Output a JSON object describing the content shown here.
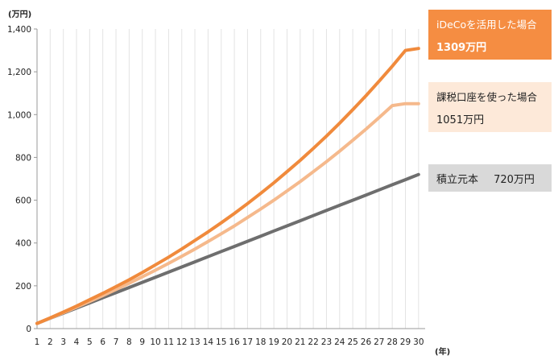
{
  "chart_data": {
    "type": "line",
    "y_unit_label": "(万円)",
    "x_unit_label": "(年)",
    "x": [
      1,
      2,
      3,
      4,
      5,
      6,
      7,
      8,
      9,
      10,
      11,
      12,
      13,
      14,
      15,
      16,
      17,
      18,
      19,
      20,
      21,
      22,
      23,
      24,
      25,
      26,
      27,
      28,
      29,
      30
    ],
    "ylim": [
      0,
      1400
    ],
    "yticks": [
      0,
      200,
      400,
      600,
      800,
      1000,
      1200,
      1400
    ],
    "ytick_labels": [
      "0",
      "200",
      "400",
      "600",
      "800",
      "1,000",
      "1,200",
      "1,400"
    ],
    "grid": "vertical",
    "series": [
      {
        "name": "iDeCoを活用した場合",
        "color": "#f08a3c",
        "values": [
          24,
          50,
          77,
          105,
          135,
          165,
          196,
          228,
          262,
          298,
          334,
          372,
          412,
          452,
          494,
          538,
          584,
          632,
          681,
          733,
          786,
          842,
          900,
          960,
          1023,
          1088,
          1156,
          1226,
          1300,
          1309
        ]
      },
      {
        "name": "課税口座を使った場合",
        "color": "#f5b98c",
        "values": [
          24,
          49,
          74,
          100,
          127,
          154,
          183,
          212,
          242,
          273,
          305,
          338,
          372,
          407,
          443,
          480,
          519,
          559,
          600,
          643,
          687,
          733,
          780,
          829,
          880,
          932,
          986,
          1042,
          1051,
          1051
        ]
      },
      {
        "name": "積立元本",
        "color": "#6e6e6e",
        "values": [
          24,
          48,
          72,
          96,
          120,
          144,
          168,
          192,
          216,
          240,
          264,
          288,
          312,
          336,
          360,
          384,
          408,
          432,
          456,
          480,
          504,
          528,
          552,
          576,
          600,
          624,
          648,
          672,
          696,
          720
        ]
      }
    ]
  },
  "legend": [
    {
      "name": "iDeCoを活用した場合",
      "value": "1309万円",
      "bg": "#f58d42",
      "text_color": "#ffffff"
    },
    {
      "name": "課税口座を使った場合",
      "value": "1051万円",
      "bg": "#fde9d9",
      "text_color": "#222222"
    },
    {
      "name": "積立元本",
      "value": "720万円",
      "bg": "#d9d9d9",
      "text_color": "#222222"
    }
  ]
}
